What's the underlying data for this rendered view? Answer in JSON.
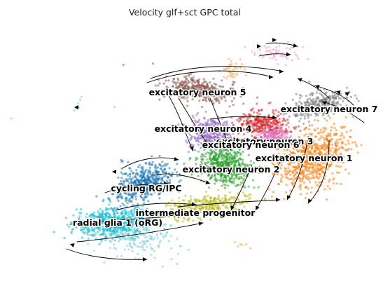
{
  "chart_data": {
    "type": "scatter",
    "title": "Velocity glf+sct GPC total",
    "xlabel": "",
    "ylabel": "",
    "axes_visible": false,
    "grid": false,
    "legend": "on-data labels",
    "overlay": "velocity streamlines with arrowheads",
    "clusters": [
      {
        "name": "excitatory neuron 5",
        "color": "#8c564b",
        "center": [
          285,
          128
        ]
      },
      {
        "name": "excitatory neuron 7",
        "color": "#7f7f7f",
        "center": [
          455,
          150
        ]
      },
      {
        "name": "excitatory neuron 4",
        "color": "#9467bd",
        "center": [
          300,
          190
        ]
      },
      {
        "name": "excitatory neuron 3",
        "color": "#d62728",
        "center": [
          375,
          178
        ]
      },
      {
        "name": "excitatory neuron 6",
        "color": "#e377c2",
        "center": [
          395,
          195
        ]
      },
      {
        "name": "excitatory neuron 1",
        "color": "#ff7f0e",
        "center": [
          445,
          225
        ]
      },
      {
        "name": "excitatory neuron 2",
        "color": "#2ca02c",
        "center": [
          320,
          235
        ]
      },
      {
        "name": "cycling RG/IPC",
        "color": "#1f77b4",
        "center": [
          205,
          262
        ]
      },
      {
        "name": "intermediate progenitor",
        "color": "#bcbd22",
        "center": [
          290,
          295
        ]
      },
      {
        "name": "radial glia 1 (oRG)",
        "color": "#17becf",
        "center": [
          165,
          318
        ]
      }
    ]
  }
}
